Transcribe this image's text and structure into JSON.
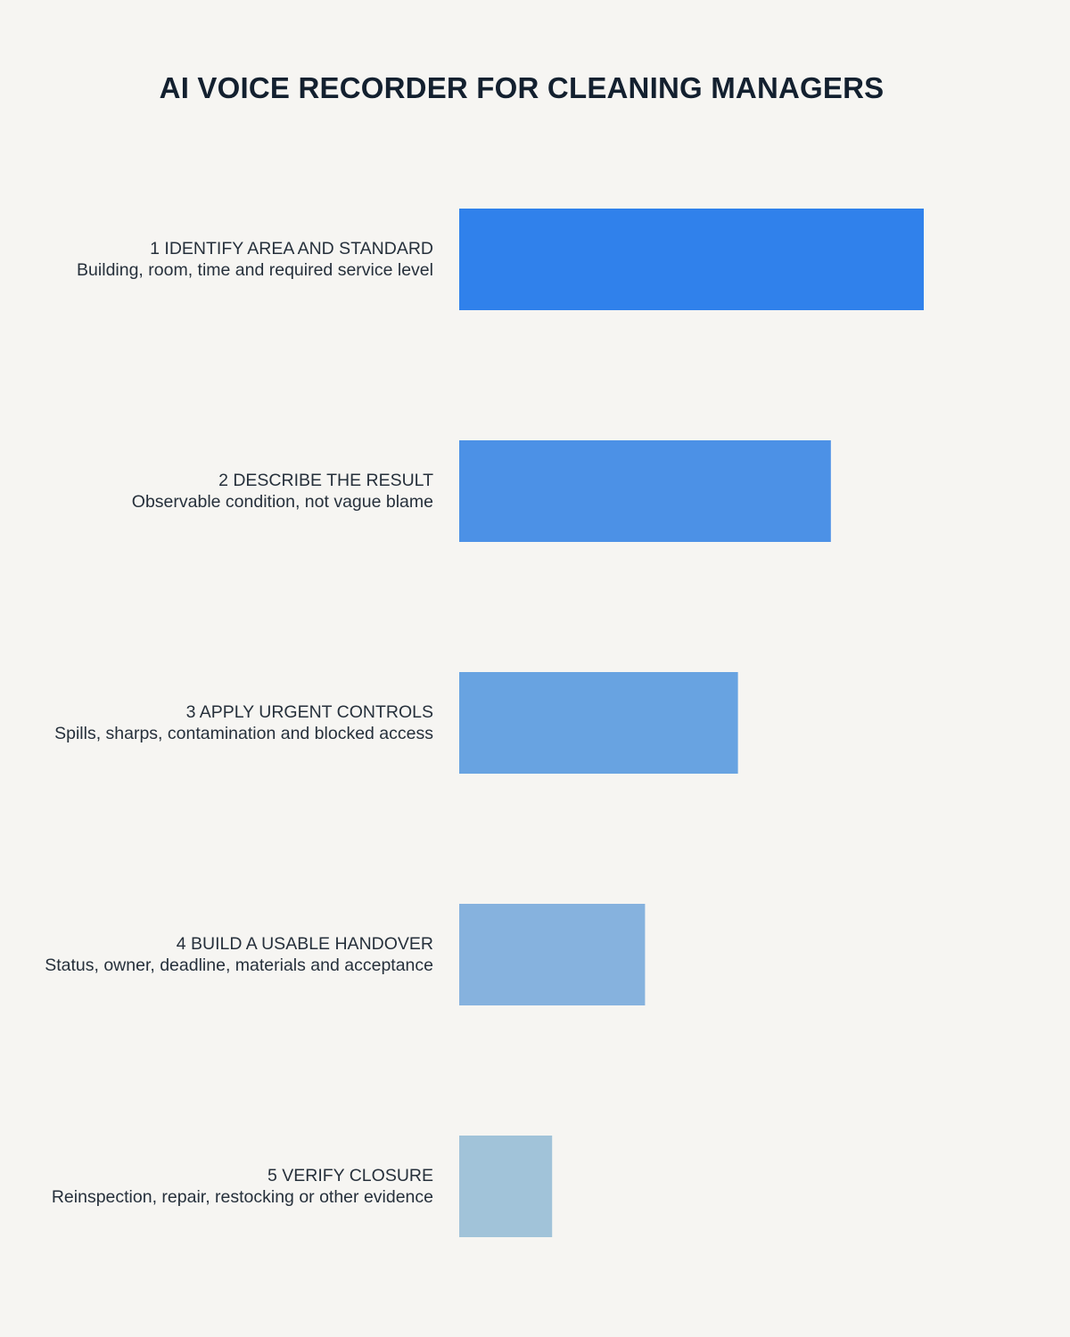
{
  "title": "AI VOICE RECORDER FOR CLEANING MANAGERS",
  "chart_data": {
    "type": "bar",
    "orientation": "horizontal",
    "title": "AI VOICE RECORDER FOR CLEANING MANAGERS",
    "categories": [
      "1 IDENTIFY AREA AND STANDARD",
      "2 DESCRIBE THE RESULT",
      "3 APPLY URGENT CONTROLS",
      "4 BUILD A USABLE HANDOVER",
      "5 VERIFY CLOSURE"
    ],
    "subtitles": [
      "Building, room, time and required service level",
      "Observable condition, not vague blame",
      "Spills, sharps, contamination and blocked access",
      "Status, owner, deadline, materials and acceptance",
      "Reinspection, repair, restocking or other evidence"
    ],
    "values": [
      5,
      4,
      3,
      2,
      1
    ],
    "colors": [
      "#3081eb",
      "#4c91e6",
      "#68a3e1",
      "#86b2de",
      "#a1c3d9"
    ],
    "xlim": [
      0,
      5
    ],
    "grid": false,
    "legend": "none"
  }
}
